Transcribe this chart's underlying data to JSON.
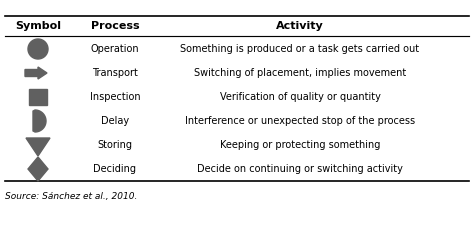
{
  "headers": [
    "Symbol",
    "Process",
    "Activity"
  ],
  "rows": [
    {
      "process": "Operation",
      "activity": "Something is produced or a task gets carried out"
    },
    {
      "process": "Transport",
      "activity": "Switching of placement, implies movement"
    },
    {
      "process": "Inspection",
      "activity": "Verification of quality or quantity"
    },
    {
      "process": "Delay",
      "activity": "Interference or unexpected stop of the process"
    },
    {
      "process": "Storing",
      "activity": "Keeping or protecting something"
    },
    {
      "process": "Deciding",
      "activity": "Decide on continuing or switching activity"
    }
  ],
  "symbol_color": "#606060",
  "source_text": "Source: Sánchez et al., 2010.",
  "figsize": [
    4.74,
    2.4
  ],
  "dpi": 100,
  "header_fontsize": 8.0,
  "body_fontsize": 7.0,
  "source_fontsize": 6.5
}
